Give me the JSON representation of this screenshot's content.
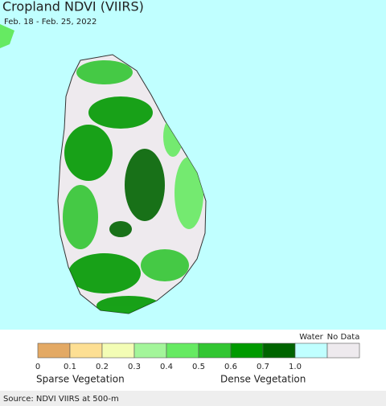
{
  "header": {
    "title": "Cropland NDVI (VIIRS)",
    "subtitle": "Feb. 18 - Feb. 25, 2022"
  },
  "legend": {
    "swatches": [
      {
        "color": "#e3a964"
      },
      {
        "color": "#fddf93"
      },
      {
        "color": "#f3fdb5"
      },
      {
        "color": "#a3f59a"
      },
      {
        "color": "#66ea62"
      },
      {
        "color": "#32c632"
      },
      {
        "color": "#009a00"
      },
      {
        "color": "#006400"
      },
      {
        "color": "#c0ffff",
        "label": "Water"
      },
      {
        "color": "#eeeaee",
        "label": "No Data"
      }
    ],
    "ticks": [
      "0",
      "0.1",
      "0.2",
      "0.3",
      "0.4",
      "0.5",
      "0.6",
      "0.7",
      "1.0"
    ],
    "low_label": "Sparse Vegetation",
    "high_label": "Dense Vegetation"
  },
  "footer": {
    "source": "Source: NDVI VIIRS at 500-m"
  }
}
